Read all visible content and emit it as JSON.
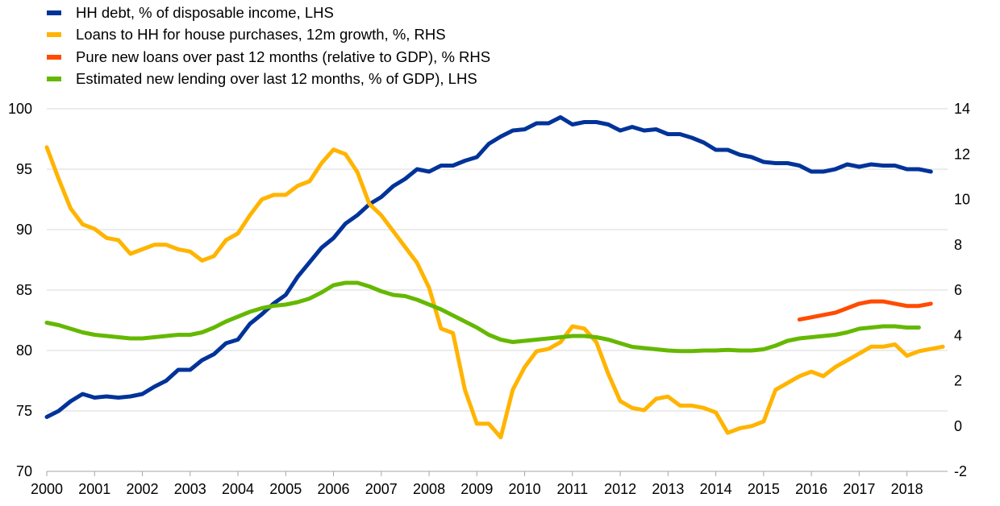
{
  "chart_data": {
    "type": "line",
    "title": "",
    "xlabel": "",
    "ylabel": "",
    "x_ticks": [
      "2000",
      "2001",
      "2002",
      "2003",
      "2004",
      "2005",
      "2006",
      "2007",
      "2008",
      "2009",
      "2010",
      "2011",
      "2012",
      "2013",
      "2014",
      "2015",
      "2016",
      "2017",
      "2018"
    ],
    "xlim": [
      2000,
      2018.85
    ],
    "y_left": {
      "lim": [
        70,
        100
      ],
      "ticks": [
        70,
        75,
        80,
        85,
        90,
        95,
        100
      ]
    },
    "y_right": {
      "lim": [
        -2,
        14
      ],
      "ticks": [
        -2,
        0,
        2,
        4,
        6,
        8,
        10,
        12,
        14
      ]
    },
    "grid": "horizontal",
    "legend_position": "top-left",
    "series": [
      {
        "name": "HH debt, % of disposable income, LHS",
        "axis": "left",
        "color": "#003399",
        "points": [
          [
            2000.0,
            74.5
          ],
          [
            2000.25,
            75.0
          ],
          [
            2000.5,
            75.8
          ],
          [
            2000.75,
            76.4
          ],
          [
            2001.0,
            76.1
          ],
          [
            2001.25,
            76.2
          ],
          [
            2001.5,
            76.1
          ],
          [
            2001.75,
            76.2
          ],
          [
            2002.0,
            76.4
          ],
          [
            2002.25,
            77.0
          ],
          [
            2002.5,
            77.5
          ],
          [
            2002.75,
            78.4
          ],
          [
            2003.0,
            78.4
          ],
          [
            2003.25,
            79.2
          ],
          [
            2003.5,
            79.7
          ],
          [
            2003.75,
            80.6
          ],
          [
            2004.0,
            80.9
          ],
          [
            2004.25,
            82.2
          ],
          [
            2004.5,
            83.0
          ],
          [
            2004.75,
            83.9
          ],
          [
            2005.0,
            84.6
          ],
          [
            2005.25,
            86.1
          ],
          [
            2005.5,
            87.3
          ],
          [
            2005.75,
            88.5
          ],
          [
            2006.0,
            89.3
          ],
          [
            2006.25,
            90.5
          ],
          [
            2006.5,
            91.2
          ],
          [
            2006.75,
            92.1
          ],
          [
            2007.0,
            92.7
          ],
          [
            2007.25,
            93.6
          ],
          [
            2007.5,
            94.2
          ],
          [
            2007.75,
            95.0
          ],
          [
            2008.0,
            94.8
          ],
          [
            2008.25,
            95.3
          ],
          [
            2008.5,
            95.3
          ],
          [
            2008.75,
            95.7
          ],
          [
            2009.0,
            96.0
          ],
          [
            2009.25,
            97.1
          ],
          [
            2009.5,
            97.7
          ],
          [
            2009.75,
            98.2
          ],
          [
            2010.0,
            98.3
          ],
          [
            2010.25,
            98.8
          ],
          [
            2010.5,
            98.8
          ],
          [
            2010.75,
            99.3
          ],
          [
            2011.0,
            98.7
          ],
          [
            2011.25,
            98.9
          ],
          [
            2011.5,
            98.9
          ],
          [
            2011.75,
            98.7
          ],
          [
            2012.0,
            98.2
          ],
          [
            2012.25,
            98.5
          ],
          [
            2012.5,
            98.2
          ],
          [
            2012.75,
            98.3
          ],
          [
            2013.0,
            97.9
          ],
          [
            2013.25,
            97.9
          ],
          [
            2013.5,
            97.6
          ],
          [
            2013.75,
            97.2
          ],
          [
            2014.0,
            96.6
          ],
          [
            2014.25,
            96.6
          ],
          [
            2014.5,
            96.2
          ],
          [
            2014.75,
            96.0
          ],
          [
            2015.0,
            95.6
          ],
          [
            2015.25,
            95.5
          ],
          [
            2015.5,
            95.5
          ],
          [
            2015.75,
            95.3
          ],
          [
            2016.0,
            94.8
          ],
          [
            2016.25,
            94.8
          ],
          [
            2016.5,
            95.0
          ],
          [
            2016.75,
            95.4
          ],
          [
            2017.0,
            95.2
          ],
          [
            2017.25,
            95.4
          ],
          [
            2017.5,
            95.3
          ],
          [
            2017.75,
            95.3
          ],
          [
            2018.0,
            95.0
          ],
          [
            2018.25,
            95.0
          ],
          [
            2018.5,
            94.8
          ]
        ]
      },
      {
        "name": "Loans to HH for house purchases, 12m growth, %, RHS",
        "axis": "right",
        "color": "#FFB400",
        "points": [
          [
            2000.0,
            12.3
          ],
          [
            2000.25,
            10.9
          ],
          [
            2000.5,
            9.6
          ],
          [
            2000.75,
            8.9
          ],
          [
            2001.0,
            8.7
          ],
          [
            2001.25,
            8.3
          ],
          [
            2001.5,
            8.2
          ],
          [
            2001.75,
            7.6
          ],
          [
            2002.0,
            7.8
          ],
          [
            2002.25,
            8.0
          ],
          [
            2002.5,
            8.0
          ],
          [
            2002.75,
            7.8
          ],
          [
            2003.0,
            7.7
          ],
          [
            2003.25,
            7.3
          ],
          [
            2003.5,
            7.5
          ],
          [
            2003.75,
            8.2
          ],
          [
            2004.0,
            8.5
          ],
          [
            2004.25,
            9.3
          ],
          [
            2004.5,
            10.0
          ],
          [
            2004.75,
            10.2
          ],
          [
            2005.0,
            10.2
          ],
          [
            2005.25,
            10.6
          ],
          [
            2005.5,
            10.8
          ],
          [
            2005.75,
            11.6
          ],
          [
            2006.0,
            12.2
          ],
          [
            2006.25,
            12.0
          ],
          [
            2006.5,
            11.2
          ],
          [
            2006.75,
            9.8
          ],
          [
            2007.0,
            9.3
          ],
          [
            2007.25,
            8.6
          ],
          [
            2007.5,
            7.9
          ],
          [
            2007.75,
            7.2
          ],
          [
            2008.0,
            6.1
          ],
          [
            2008.25,
            4.3
          ],
          [
            2008.5,
            4.1
          ],
          [
            2008.75,
            1.6
          ],
          [
            2009.0,
            0.1
          ],
          [
            2009.25,
            0.1
          ],
          [
            2009.5,
            -0.5
          ],
          [
            2009.75,
            1.6
          ],
          [
            2010.0,
            2.6
          ],
          [
            2010.25,
            3.3
          ],
          [
            2010.5,
            3.4
          ],
          [
            2010.75,
            3.7
          ],
          [
            2011.0,
            4.4
          ],
          [
            2011.25,
            4.3
          ],
          [
            2011.5,
            3.7
          ],
          [
            2011.75,
            2.3
          ],
          [
            2012.0,
            1.1
          ],
          [
            2012.25,
            0.8
          ],
          [
            2012.5,
            0.7
          ],
          [
            2012.75,
            1.2
          ],
          [
            2013.0,
            1.3
          ],
          [
            2013.25,
            0.9
          ],
          [
            2013.5,
            0.9
          ],
          [
            2013.75,
            0.8
          ],
          [
            2014.0,
            0.6
          ],
          [
            2014.25,
            -0.3
          ],
          [
            2014.5,
            -0.1
          ],
          [
            2014.75,
            0.0
          ],
          [
            2015.0,
            0.2
          ],
          [
            2015.25,
            1.6
          ],
          [
            2015.5,
            1.9
          ],
          [
            2015.75,
            2.2
          ],
          [
            2016.0,
            2.4
          ],
          [
            2016.25,
            2.2
          ],
          [
            2016.5,
            2.6
          ],
          [
            2016.75,
            2.9
          ],
          [
            2017.0,
            3.2
          ],
          [
            2017.25,
            3.5
          ],
          [
            2017.5,
            3.5
          ],
          [
            2017.75,
            3.6
          ],
          [
            2018.0,
            3.1
          ],
          [
            2018.25,
            3.3
          ],
          [
            2018.5,
            3.4
          ],
          [
            2018.75,
            3.5
          ]
        ]
      },
      {
        "name": "Pure new loans over past 12 months (relative to GDP), % RHS",
        "axis": "right",
        "color": "#FF4B00",
        "points": [
          [
            2015.75,
            4.7
          ],
          [
            2016.0,
            4.8
          ],
          [
            2016.25,
            4.9
          ],
          [
            2016.5,
            5.0
          ],
          [
            2016.75,
            5.2
          ],
          [
            2017.0,
            5.4
          ],
          [
            2017.25,
            5.5
          ],
          [
            2017.5,
            5.5
          ],
          [
            2017.75,
            5.4
          ],
          [
            2018.0,
            5.3
          ],
          [
            2018.25,
            5.3
          ],
          [
            2018.5,
            5.4
          ]
        ]
      },
      {
        "name": "Estimated new lending over last 12 months, % of GDP), LHS",
        "axis": "left",
        "color": "#65B800",
        "points": [
          [
            2000.0,
            82.3
          ],
          [
            2000.25,
            82.1
          ],
          [
            2000.5,
            81.8
          ],
          [
            2000.75,
            81.5
          ],
          [
            2001.0,
            81.3
          ],
          [
            2001.25,
            81.2
          ],
          [
            2001.5,
            81.1
          ],
          [
            2001.75,
            81.0
          ],
          [
            2002.0,
            81.0
          ],
          [
            2002.25,
            81.1
          ],
          [
            2002.5,
            81.2
          ],
          [
            2002.75,
            81.3
          ],
          [
            2003.0,
            81.3
          ],
          [
            2003.25,
            81.5
          ],
          [
            2003.5,
            81.9
          ],
          [
            2003.75,
            82.4
          ],
          [
            2004.0,
            82.8
          ],
          [
            2004.25,
            83.2
          ],
          [
            2004.5,
            83.5
          ],
          [
            2004.75,
            83.7
          ],
          [
            2005.0,
            83.8
          ],
          [
            2005.25,
            84.0
          ],
          [
            2005.5,
            84.3
          ],
          [
            2005.75,
            84.8
          ],
          [
            2006.0,
            85.4
          ],
          [
            2006.25,
            85.6
          ],
          [
            2006.5,
            85.6
          ],
          [
            2006.75,
            85.3
          ],
          [
            2007.0,
            84.9
          ],
          [
            2007.25,
            84.6
          ],
          [
            2007.5,
            84.5
          ],
          [
            2007.75,
            84.2
          ],
          [
            2008.0,
            83.8
          ],
          [
            2008.25,
            83.4
          ],
          [
            2008.5,
            82.9
          ],
          [
            2008.75,
            82.4
          ],
          [
            2009.0,
            81.9
          ],
          [
            2009.25,
            81.3
          ],
          [
            2009.5,
            80.9
          ],
          [
            2009.75,
            80.7
          ],
          [
            2010.0,
            80.8
          ],
          [
            2010.25,
            80.9
          ],
          [
            2010.5,
            81.0
          ],
          [
            2010.75,
            81.1
          ],
          [
            2011.0,
            81.2
          ],
          [
            2011.25,
            81.2
          ],
          [
            2011.5,
            81.1
          ],
          [
            2011.75,
            80.9
          ],
          [
            2012.0,
            80.6
          ],
          [
            2012.25,
            80.3
          ],
          [
            2012.5,
            80.2
          ],
          [
            2012.75,
            80.1
          ],
          [
            2013.0,
            80.0
          ],
          [
            2013.25,
            79.95
          ],
          [
            2013.5,
            79.95
          ],
          [
            2013.75,
            80.0
          ],
          [
            2014.0,
            80.0
          ],
          [
            2014.25,
            80.05
          ],
          [
            2014.5,
            80.0
          ],
          [
            2014.75,
            80.0
          ],
          [
            2015.0,
            80.1
          ],
          [
            2015.25,
            80.4
          ],
          [
            2015.5,
            80.8
          ],
          [
            2015.75,
            81.0
          ],
          [
            2016.0,
            81.1
          ],
          [
            2016.25,
            81.2
          ],
          [
            2016.5,
            81.3
          ],
          [
            2016.75,
            81.5
          ],
          [
            2017.0,
            81.8
          ],
          [
            2017.25,
            81.9
          ],
          [
            2017.5,
            82.0
          ],
          [
            2017.75,
            82.0
          ],
          [
            2018.0,
            81.9
          ],
          [
            2018.25,
            81.9
          ]
        ]
      }
    ]
  }
}
